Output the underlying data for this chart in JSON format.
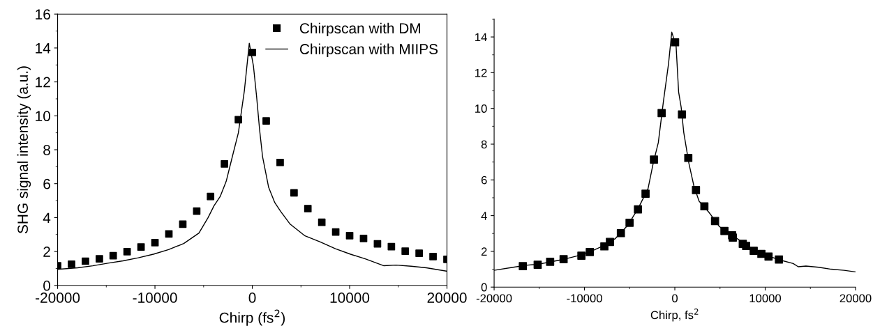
{
  "chart_data": [
    {
      "type": "line",
      "xlabel": "Chirp (fs$^{2}$)",
      "ylabel": "SHG signal intensity (a.u.)",
      "xlim": [
        -20000,
        20000
      ],
      "xticks": [
        -20000,
        -10000,
        0,
        10000,
        20000
      ],
      "ylim": [
        0,
        16
      ],
      "yticks": [
        0,
        2,
        4,
        6,
        8,
        10,
        12,
        14,
        16
      ],
      "legend": "top right",
      "grid": false,
      "series": [
        {
          "name": "Chirpscan with DM",
          "type": "scatter",
          "marker": "square",
          "color": "#000000",
          "x": [
            -20000,
            -18570,
            -17140,
            -15710,
            -14290,
            -12860,
            -11430,
            -10000,
            -8570,
            -7140,
            -5710,
            -4290,
            -2860,
            -1430,
            0,
            1430,
            2860,
            4290,
            5710,
            7140,
            8570,
            10000,
            11430,
            12860,
            14290,
            15710,
            17140,
            18570,
            20000
          ],
          "values": [
            1.16,
            1.25,
            1.43,
            1.57,
            1.75,
            1.99,
            2.27,
            2.52,
            3.04,
            3.61,
            4.38,
            5.24,
            7.16,
            9.77,
            13.74,
            9.7,
            7.25,
            5.46,
            4.53,
            3.72,
            3.15,
            2.93,
            2.77,
            2.45,
            2.29,
            2.02,
            1.9,
            1.7,
            1.54
          ]
        },
        {
          "name": "Chirpscan with MIIPS",
          "line_style": "solid",
          "color": "#000000",
          "x": [
            -20000,
            -17940,
            -16390,
            -14830,
            -13270,
            -11710,
            -10160,
            -8600,
            -7040,
            -5480,
            -4550,
            -3930,
            -3300,
            -2680,
            -2060,
            -1430,
            -810,
            -310,
            120,
            440,
            750,
            1060,
            1680,
            2310,
            2930,
            3860,
            5420,
            6980,
            8540,
            10090,
            11650,
            13520,
            14770,
            16320,
            17880,
            20000
          ],
          "values": [
            0.95,
            1.04,
            1.16,
            1.31,
            1.45,
            1.63,
            1.84,
            2.11,
            2.47,
            3.09,
            3.99,
            4.7,
            5.24,
            6.14,
            7.57,
            9.0,
            11.5,
            14.28,
            12.93,
            11.15,
            9.18,
            7.57,
            5.78,
            4.88,
            4.35,
            3.63,
            2.92,
            2.56,
            2.16,
            1.84,
            1.56,
            1.16,
            1.2,
            1.13,
            1.04,
            0.84
          ]
        }
      ]
    },
    {
      "type": "line",
      "xlabel": "Chirp, fs$^{2}$",
      "xlim": [
        -20000,
        20000
      ],
      "xticks": [
        -20000,
        -10000,
        0,
        10000,
        20000
      ],
      "ylim": [
        0,
        15
      ],
      "yticks": [
        0,
        2,
        4,
        6,
        8,
        10,
        12,
        14
      ],
      "legend": false,
      "grid": false,
      "series": [
        {
          "line_style": "solid",
          "color": "#000000",
          "x": [
            -20000,
            -17890,
            -16480,
            -15070,
            -13660,
            -12250,
            -10850,
            -9440,
            -8030,
            -6620,
            -5210,
            -4080,
            -2960,
            -2390,
            -1830,
            -1270,
            -700,
            -340,
            140,
            420,
            700,
            990,
            1550,
            2110,
            2680,
            3800,
            4930,
            6060,
            7460,
            8870,
            10280,
            11690,
            13100,
            13660,
            14510,
            15920,
            17320,
            18730,
            20000
          ],
          "values": [
            0.94,
            1.11,
            1.22,
            1.28,
            1.42,
            1.56,
            1.74,
            1.96,
            2.28,
            2.7,
            3.46,
            4.38,
            5.52,
            6.94,
            8.08,
            10.36,
            12.49,
            14.27,
            13.49,
            10.92,
            10.07,
            8.65,
            6.94,
            5.66,
            4.81,
            4.17,
            3.39,
            2.99,
            2.53,
            2.03,
            1.75,
            1.51,
            1.32,
            1.14,
            1.18,
            1.11,
            1.0,
            0.94,
            0.85
          ]
        },
        {
          "type": "scatter",
          "marker": "square",
          "color": "#000000",
          "x": [
            -16820,
            -15180,
            -13800,
            -12310,
            -10340,
            -9410,
            -7800,
            -7180,
            -5970,
            -5010,
            -4080,
            -3240,
            -2310,
            -1460,
            30,
            790,
            1490,
            2340,
            3270,
            4450,
            5490,
            6340,
            6420,
            7520,
            7890,
            8730,
            9580,
            10370,
            11520
          ],
          "values": [
            1.17,
            1.25,
            1.42,
            1.56,
            1.76,
            1.96,
            2.28,
            2.53,
            3.02,
            3.6,
            4.35,
            5.23,
            7.14,
            9.74,
            13.7,
            9.66,
            7.23,
            5.43,
            4.52,
            3.7,
            3.14,
            2.9,
            2.77,
            2.42,
            2.3,
            2.03,
            1.86,
            1.71,
            1.54
          ]
        }
      ]
    }
  ]
}
